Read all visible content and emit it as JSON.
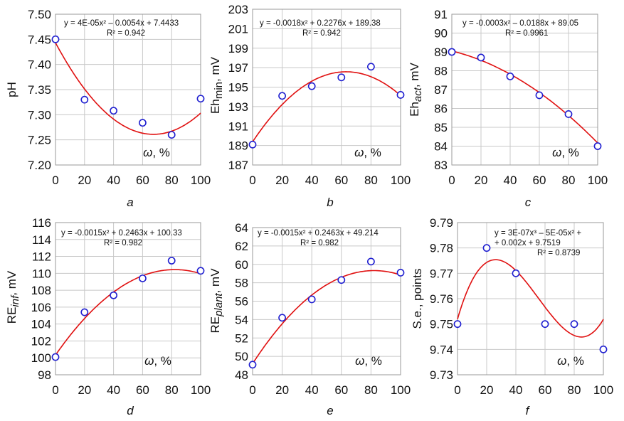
{
  "chart_data": [
    {
      "type": "scatter",
      "label": "a",
      "ylabel": {
        "main": "pH",
        "sub": ""
      },
      "x_axis_label": "ω, %",
      "ylim": [
        7.2,
        7.5
      ],
      "ytick_labels": [
        "7.20",
        "7.25",
        "7.30",
        "7.35",
        "7.40",
        "7.45",
        "7.50"
      ],
      "xlim": [
        0,
        100
      ],
      "xtick_labels": [
        "0",
        "20",
        "40",
        "60",
        "80",
        "100"
      ],
      "x": [
        0,
        20,
        40,
        60,
        80,
        100
      ],
      "y": [
        7.45,
        7.33,
        7.308,
        7.284,
        7.26,
        7.332
      ],
      "trendline": {
        "coefficients": [
          4e-05,
          -0.0054,
          7.4433
        ]
      },
      "equation_lines": [
        "y = 4E-05x² – 0.0054x + 7.4433",
        "R² = 0.942"
      ],
      "grid": true,
      "colors": {
        "marker": "#1f1fd0",
        "trend": "#e01010",
        "grid": "#c8c8c8"
      }
    },
    {
      "type": "scatter",
      "label": "b",
      "ylabel": {
        "main": "Eh",
        "sub": "min",
        "suffix": ", mV"
      },
      "x_axis_label": "ω, %",
      "ylim": [
        187,
        203
      ],
      "ytick_labels": [
        "187",
        "189",
        "191",
        "193",
        "195",
        "197",
        "199",
        "201",
        "203"
      ],
      "xlim": [
        0,
        100
      ],
      "xtick_labels": [
        "0",
        "20",
        "40",
        "60",
        "80",
        "100"
      ],
      "x": [
        0,
        20,
        40,
        60,
        80,
        100
      ],
      "y": [
        189.1,
        194.1,
        195.1,
        196.0,
        197.1,
        194.2
      ],
      "trendline": {
        "coefficients": [
          -0.0018,
          0.2276,
          189.38
        ]
      },
      "equation_lines": [
        "y = -0.0018x² + 0.2276x + 189.38",
        "R² = 0.942"
      ],
      "grid": true,
      "colors": {
        "marker": "#1f1fd0",
        "trend": "#e01010",
        "grid": "#c8c8c8"
      }
    },
    {
      "type": "scatter",
      "label": "c",
      "ylabel": {
        "main": "Eh",
        "sub": "act",
        "suffix": ", mV"
      },
      "x_axis_label": "ω, %",
      "ylim": [
        83,
        91
      ],
      "ytick_labels": [
        "83",
        "84",
        "85",
        "86",
        "87",
        "88",
        "89",
        "90",
        "91"
      ],
      "xlim": [
        0,
        100
      ],
      "xtick_labels": [
        "0",
        "20",
        "40",
        "60",
        "80",
        "100"
      ],
      "x": [
        0,
        20,
        40,
        60,
        80,
        100
      ],
      "y": [
        89.0,
        88.7,
        87.7,
        86.7,
        85.7,
        84.0
      ],
      "trendline": {
        "coefficients": [
          -0.0003,
          -0.0188,
          89.05
        ]
      },
      "equation_lines": [
        "y = -0.0003x² – 0.0188x + 89.05",
        "R² = 0.9961"
      ],
      "grid": true,
      "colors": {
        "marker": "#1f1fd0",
        "trend": "#e01010",
        "grid": "#c8c8c8"
      }
    },
    {
      "type": "scatter",
      "label": "d",
      "ylabel": {
        "main": "RE",
        "sub": "inf",
        "suffix": ", mV"
      },
      "x_axis_label": "ω, %",
      "ylim": [
        98,
        116
      ],
      "ytick_labels": [
        "98",
        "100",
        "102",
        "104",
        "106",
        "108",
        "110",
        "112",
        "114",
        "116"
      ],
      "xlim": [
        0,
        100
      ],
      "xtick_labels": [
        "0",
        "20",
        "40",
        "60",
        "80",
        "100"
      ],
      "x": [
        0,
        20,
        40,
        60,
        80,
        100
      ],
      "y": [
        100.1,
        105.4,
        107.4,
        109.4,
        111.5,
        110.3
      ],
      "trendline": {
        "coefficients": [
          -0.0015,
          0.2463,
          100.33
        ]
      },
      "equation_lines": [
        "y = -0.0015x² + 0.2463x + 100.33",
        "R² = 0.982"
      ],
      "grid": true,
      "colors": {
        "marker": "#1f1fd0",
        "trend": "#e01010",
        "grid": "#c8c8c8"
      }
    },
    {
      "type": "scatter",
      "label": "e",
      "ylabel": {
        "main": "RE",
        "sub": "plant",
        "suffix": ", mV"
      },
      "x_axis_label": "ω, %",
      "ylim": [
        48,
        64
      ],
      "ytick_labels": [
        "48",
        "50",
        "52",
        "54",
        "56",
        "58",
        "60",
        "62",
        "64"
      ],
      "xlim": [
        0,
        100
      ],
      "xtick_labels": [
        "0",
        "20",
        "40",
        "60",
        "80",
        "100"
      ],
      "x": [
        0,
        20,
        40,
        60,
        80,
        100
      ],
      "y": [
        49.1,
        54.2,
        56.2,
        58.3,
        60.3,
        59.1
      ],
      "trendline": {
        "coefficients": [
          -0.0015,
          0.2463,
          49.214
        ]
      },
      "equation_lines": [
        "y = -0.0015x² + 0.2463x + 49.214",
        "R² = 0.982"
      ],
      "grid": true,
      "colors": {
        "marker": "#1f1fd0",
        "trend": "#e01010",
        "grid": "#c8c8c8"
      }
    },
    {
      "type": "scatter",
      "label": "f",
      "ylabel": {
        "main": "S.e., points",
        "sub": ""
      },
      "x_axis_label": "ω, %",
      "ylim": [
        9.73,
        9.79
      ],
      "ytick_labels": [
        "9.73",
        "9.74",
        "9.75",
        "9.76",
        "9.77",
        "9.78",
        "9.79"
      ],
      "xlim": [
        0,
        100
      ],
      "xtick_labels": [
        "0",
        "20",
        "40",
        "60",
        "80",
        "100"
      ],
      "x": [
        0,
        20,
        40,
        60,
        80,
        100
      ],
      "y": [
        9.75,
        9.78,
        9.77,
        9.75,
        9.75,
        9.74
      ],
      "trendline": {
        "coefficients": [
          3e-07,
          -5e-05,
          0.002,
          9.7519
        ]
      },
      "equation_lines": [
        "y = 3E-07x³ – 5E-05x² +",
        "+ 0.002x + 9.7519",
        "R² = 0.8739"
      ],
      "grid": true,
      "colors": {
        "marker": "#1f1fd0",
        "trend": "#e01010",
        "grid": "#c8c8c8"
      }
    }
  ]
}
